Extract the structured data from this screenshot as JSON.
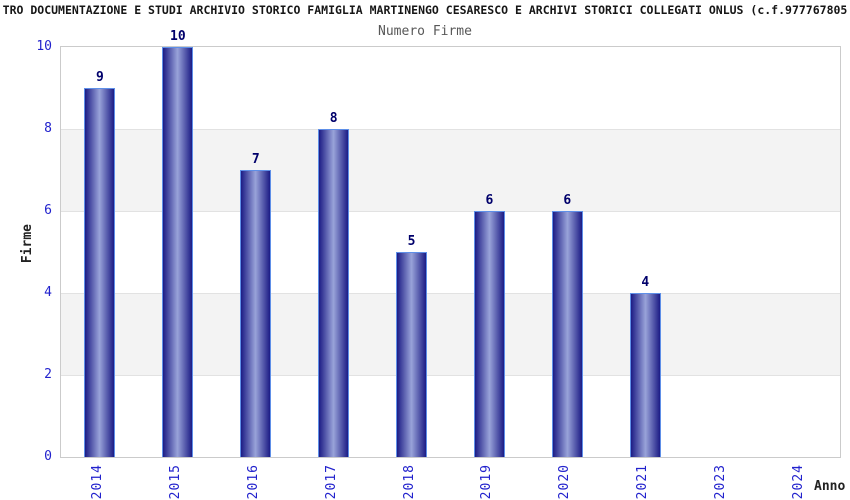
{
  "chart_data": {
    "type": "bar",
    "title": "TRO DOCUMENTAZIONE E STUDI ARCHIVIO STORICO FAMIGLIA MARTINENGO CESARESCO E ARCHIVI STORICI COLLEGATI ONLUS (c.f.977767805",
    "subtitle": "Numero Firme",
    "xlabel": "Anno",
    "ylabel": "Firme",
    "categories": [
      "2014",
      "2015",
      "2016",
      "2017",
      "2018",
      "2019",
      "2020",
      "2021",
      "2023",
      "2024"
    ],
    "values": [
      9,
      10,
      7,
      8,
      5,
      6,
      6,
      4,
      0,
      0
    ],
    "value_labels_shown": [
      "9",
      "10",
      "7",
      "8",
      "5",
      "6",
      "6",
      "4"
    ],
    "ylim": [
      0,
      10
    ],
    "yticks": [
      0,
      2,
      4,
      6,
      8,
      10
    ],
    "grid": "horizontal-bands",
    "legend_position": "none",
    "colors": {
      "bar_gradient_edge": "#1c1c85",
      "bar_gradient_center": "#99a3d9",
      "bar_border": "#5e8fe8",
      "axis_tick_label": "#2222cd",
      "value_label": "#00006b",
      "title": "#161616",
      "subtitle": "#585858",
      "band_fill": "#f3f3f3",
      "gridline": "#e2e2e2",
      "plot_border": "#cbcbcb",
      "background": "#ffffff"
    }
  }
}
